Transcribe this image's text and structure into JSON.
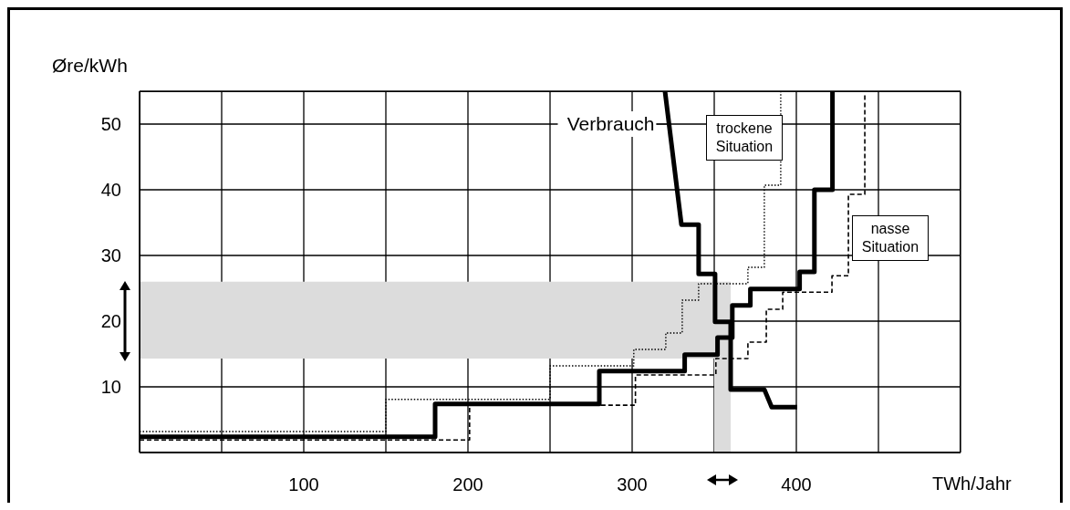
{
  "chart_data": {
    "type": "step",
    "xlabel": "TWh/Jahr",
    "ylabel": "Øre/kWh",
    "xlim": [
      0,
      500
    ],
    "xticks": [
      {
        "value": 50,
        "label": null
      },
      100,
      {
        "value": 150,
        "label": null
      },
      200,
      {
        "value": 250,
        "label": null
      },
      300,
      {
        "value": 350,
        "label": null
      },
      400,
      {
        "value": 450,
        "label": null
      }
    ],
    "ylim": [
      0,
      55
    ],
    "yticks": [
      10,
      20,
      30,
      40,
      50
    ],
    "grid": true,
    "marker": "none",
    "series": [
      {
        "color": "#000000",
        "line_style": "dotted",
        "x": [
          0,
          150,
          250,
          301,
          320.5,
          330.5,
          340.5,
          370.5,
          380.5,
          390.5
        ],
        "values": [
          3.2,
          8.1,
          13.2,
          15.7,
          18.2,
          23.2,
          25.7,
          28.2,
          40.7,
          55
        ]
      },
      {
        "color": "#000000",
        "line_style": "dashed",
        "x": [
          0,
          201,
          302,
          351,
          370.5,
          381.7,
          391.7,
          421.7,
          431.7,
          441.7
        ],
        "values": [
          1.9,
          7.2,
          11.8,
          14.3,
          16.8,
          21.8,
          24.4,
          26.9,
          39.3,
          54.6
        ]
      },
      {
        "color": "#000000",
        "line_style": "solid",
        "x": [
          0,
          180,
          280,
          332,
          352,
          361,
          372,
          402,
          411,
          422
        ],
        "values": [
          2.4,
          7.4,
          12.4,
          14.9,
          17.5,
          22.4,
          24.9,
          27.5,
          40,
          55
        ]
      },
      {
        "type": "line",
        "color": "#000000",
        "line_style": "solid",
        "x": [
          320,
          330,
          340.5,
          340.5,
          350.5,
          350.5,
          360,
          360,
          380.5,
          385,
          400.5
        ],
        "values": [
          55,
          34.7,
          34.7,
          27.2,
          27.2,
          19.9,
          19.9,
          9.6,
          9.6,
          6.9,
          6.9
        ]
      }
    ],
    "bands": [
      {
        "axis": "y",
        "from": 14.3,
        "to": 26,
        "color": "#dcdcdc"
      },
      {
        "axis": "x",
        "from": 350,
        "to": 360,
        "color": "#dcdcdc"
      }
    ],
    "annotations": [
      {
        "text": "Verbrauch",
        "x": 322.5,
        "y": 50
      },
      "trockene Situation",
      "nasse Situation"
    ]
  }
}
